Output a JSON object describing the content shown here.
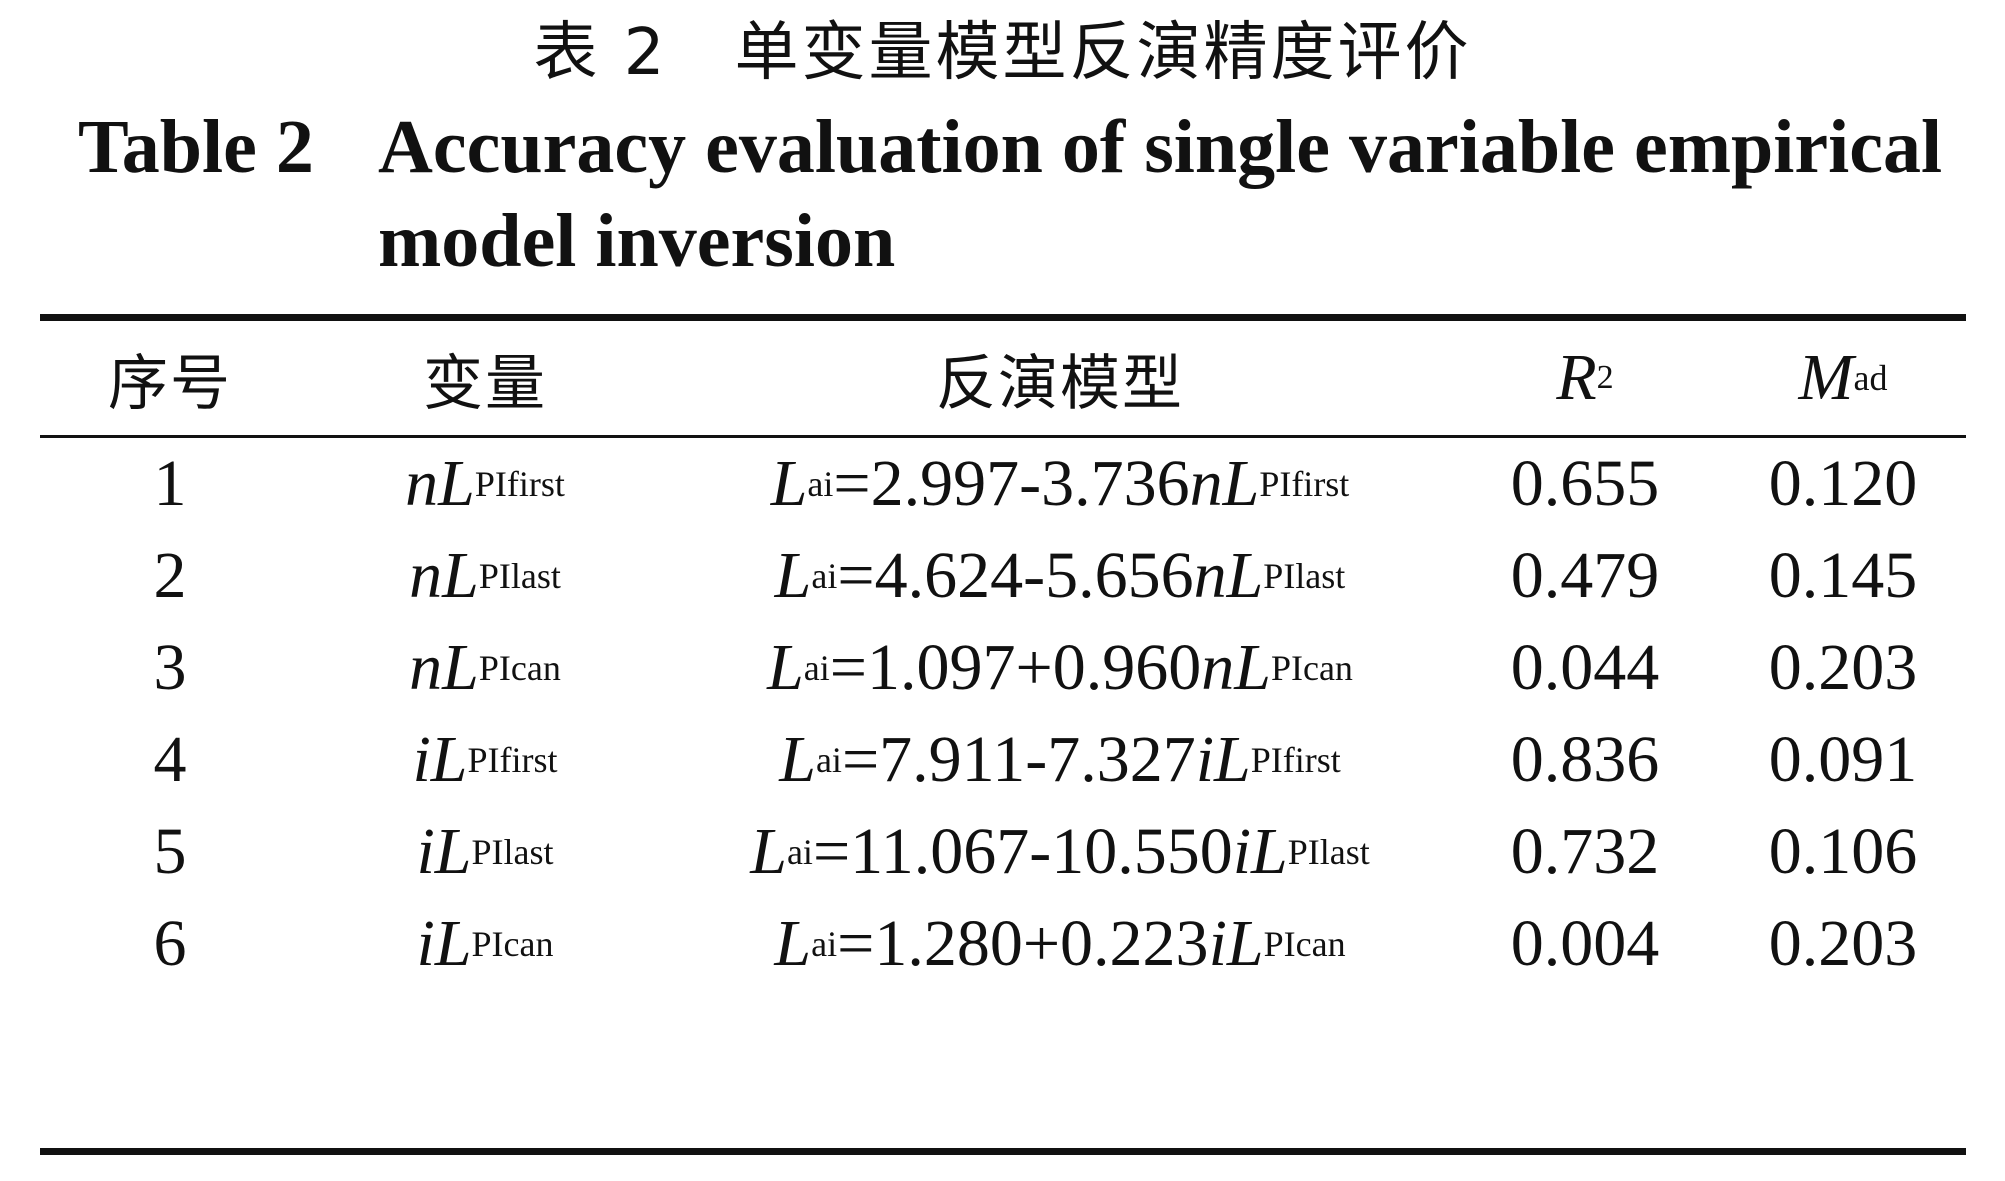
{
  "caption": {
    "cn": "表 2　单变量模型反演精度评价",
    "en_label": "Table 2",
    "en_text": "Accuracy evaluation of single variable empirical model inversion"
  },
  "headers": {
    "index": "序号",
    "variable": "变量",
    "model": "反演模型",
    "r2_base": "R",
    "r2_sup": "2",
    "mad_base": "M",
    "mad_sub": "ad"
  },
  "rows": [
    {
      "index": "1",
      "var_prefix": "nL",
      "var_sub": "PIfirst",
      "model_lhs": "L",
      "model_lhs_sub": "ai",
      "model_rhs": "=2.997-3.736",
      "model_var": "nL",
      "model_var_sub": "PIfirst",
      "r2": "0.655",
      "mad": "0.120"
    },
    {
      "index": "2",
      "var_prefix": "nL",
      "var_sub": "PIlast",
      "model_lhs": "L",
      "model_lhs_sub": "ai",
      "model_rhs": "=4.624-5.656",
      "model_var": "nL",
      "model_var_sub": "PIlast",
      "r2": "0.479",
      "mad": "0.145"
    },
    {
      "index": "3",
      "var_prefix": "nL",
      "var_sub": "PIcan",
      "model_lhs": "L",
      "model_lhs_sub": "ai",
      "model_rhs": "=1.097+0.960",
      "model_var": "nL",
      "model_var_sub": "PIcan",
      "r2": "0.044",
      "mad": "0.203"
    },
    {
      "index": "4",
      "var_prefix": "iL",
      "var_sub": "PIfirst",
      "model_lhs": "L",
      "model_lhs_sub": "ai",
      "model_rhs": "=7.911-7.327",
      "model_var": "iL",
      "model_var_sub": "PIfirst",
      "r2": "0.836",
      "mad": "0.091"
    },
    {
      "index": "5",
      "var_prefix": "iL",
      "var_sub": "PIlast",
      "model_lhs": "L",
      "model_lhs_sub": "ai",
      "model_rhs": "=11.067-10.550",
      "model_var": "iL",
      "model_var_sub": "PIlast",
      "r2": "0.732",
      "mad": "0.106"
    },
    {
      "index": "6",
      "var_prefix": "iL",
      "var_sub": "PIcan",
      "model_lhs": "L",
      "model_lhs_sub": "ai",
      "model_rhs": "=1.280+0.223",
      "model_var": "iL",
      "model_var_sub": "PIcan",
      "r2": "0.004",
      "mad": "0.203"
    }
  ]
}
